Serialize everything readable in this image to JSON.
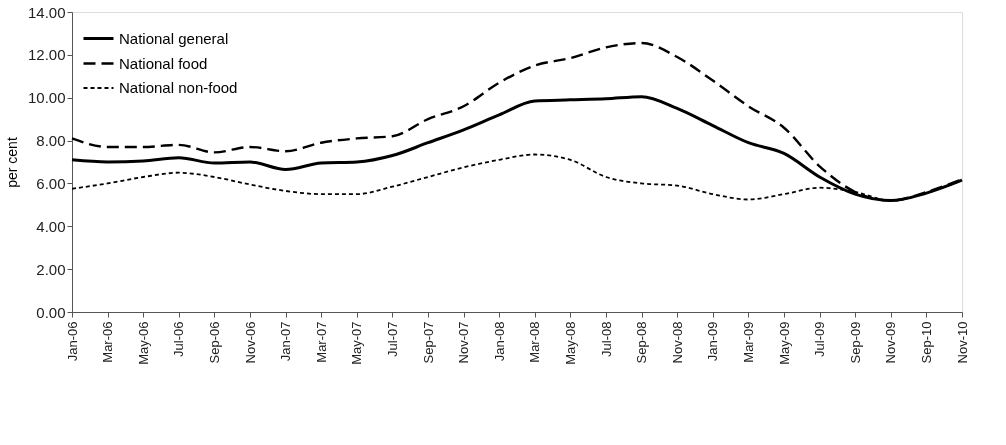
{
  "chart_data": {
    "type": "line",
    "ylabel": "per cent",
    "categories": [
      "Jan-06",
      "Mar-06",
      "May-06",
      "Jul-06",
      "Sep-06",
      "Nov-06",
      "Jan-07",
      "Mar-07",
      "May-07",
      "Jul-07",
      "Sep-07",
      "Nov-07",
      "Jan-08",
      "Mar-08",
      "May-08",
      "Jul-08",
      "Sep-08",
      "Nov-08",
      "Jan-09",
      "Mar-09",
      "May-09",
      "Jul-09",
      "Sep-09",
      "Nov-09",
      "Sep-10",
      "Nov-10"
    ],
    "series": [
      {
        "name": "National general",
        "color": "#000000",
        "line_style": "solid",
        "values": [
          7.1,
          7.0,
          7.05,
          7.2,
          6.95,
          7.0,
          6.65,
          6.95,
          7.0,
          7.3,
          7.9,
          8.5,
          9.2,
          9.85,
          9.9,
          9.95,
          10.05,
          9.5,
          8.7,
          7.9,
          7.4,
          6.3,
          5.5,
          5.2,
          5.55,
          6.15
        ]
      },
      {
        "name": "National food",
        "color": "#000000",
        "line_style": "dashed",
        "values": [
          8.1,
          7.7,
          7.7,
          7.8,
          7.45,
          7.7,
          7.5,
          7.9,
          8.1,
          8.2,
          9.0,
          9.6,
          10.7,
          11.5,
          11.85,
          12.35,
          12.55,
          11.9,
          10.8,
          9.6,
          8.6,
          6.8,
          5.6,
          5.2,
          5.6,
          6.2
        ]
      },
      {
        "name": "National non-food",
        "color": "#000000",
        "line_style": "dotted",
        "values": [
          5.75,
          6.0,
          6.3,
          6.5,
          6.3,
          5.95,
          5.65,
          5.5,
          5.5,
          5.85,
          6.3,
          6.75,
          7.1,
          7.35,
          7.1,
          6.3,
          6.0,
          5.9,
          5.5,
          5.25,
          5.5,
          5.8,
          5.6,
          5.2,
          5.55,
          6.15
        ]
      }
    ],
    "ylim": [
      0,
      14
    ],
    "yticks": [
      {
        "value": 0,
        "label": "0.00"
      },
      {
        "value": 2,
        "label": "2.00"
      },
      {
        "value": 4,
        "label": "4.00"
      },
      {
        "value": 6,
        "label": "6.00"
      },
      {
        "value": 8,
        "label": "8.00"
      },
      {
        "value": 10,
        "label": "10.00"
      },
      {
        "value": 12,
        "label": "12.00"
      },
      {
        "value": 14,
        "label": "14.00"
      }
    ],
    "grid": false,
    "legend": "top left",
    "marker": "none"
  }
}
